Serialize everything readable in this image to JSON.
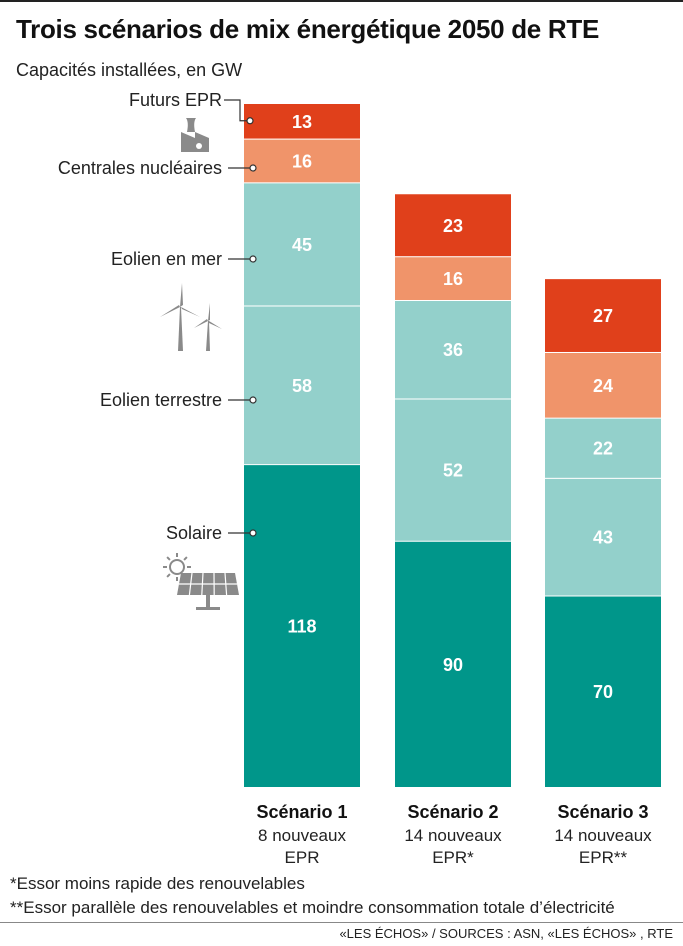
{
  "header": {
    "title": "Trois scénarios de mix énergétique 2050 de RTE",
    "subtitle": "Capacités installées, en GW"
  },
  "colors": {
    "Futurs EPR": "#e0401b",
    "Centrales nucléaires": "#f0946a",
    "Eolien en mer": "#93d0cb",
    "Eolien terrestre": "#93d0cb",
    "Solaire": "#00968a",
    "separator": "#ffffff",
    "icon": "#8a8a8a"
  },
  "icons": [
    "nuclear-plant-icon",
    "wind-turbine-icon",
    "solar-panel-icon"
  ],
  "chart_data": {
    "type": "bar",
    "stacked": true,
    "unit": "GW",
    "categories": [
      "Scénario 1",
      "Scénario 2",
      "Scénario 3"
    ],
    "category_sublabels": [
      [
        "8 nouveaux",
        "EPR"
      ],
      [
        "14 nouveaux",
        "EPR*"
      ],
      [
        "14 nouveaux",
        "EPR**"
      ]
    ],
    "series": [
      {
        "name": "Solaire",
        "values": [
          118,
          90,
          70
        ]
      },
      {
        "name": "Eolien terrestre",
        "values": [
          58,
          52,
          43
        ]
      },
      {
        "name": "Eolien en mer",
        "values": [
          45,
          36,
          22
        ]
      },
      {
        "name": "Centrales nucléaires",
        "values": [
          16,
          16,
          24
        ]
      },
      {
        "name": "Futurs EPR",
        "values": [
          13,
          23,
          27
        ]
      }
    ],
    "legend_placement": "left, beside first bar",
    "grid": false
  },
  "footnotes": [
    "*Essor moins rapide des renouvelables",
    "**Essor parallèle des renouvelables et moindre consommation totale d’électricité"
  ],
  "source": "«LES ÉCHOS» / SOURCES : ASN, «LES ÉCHOS» , RTE"
}
